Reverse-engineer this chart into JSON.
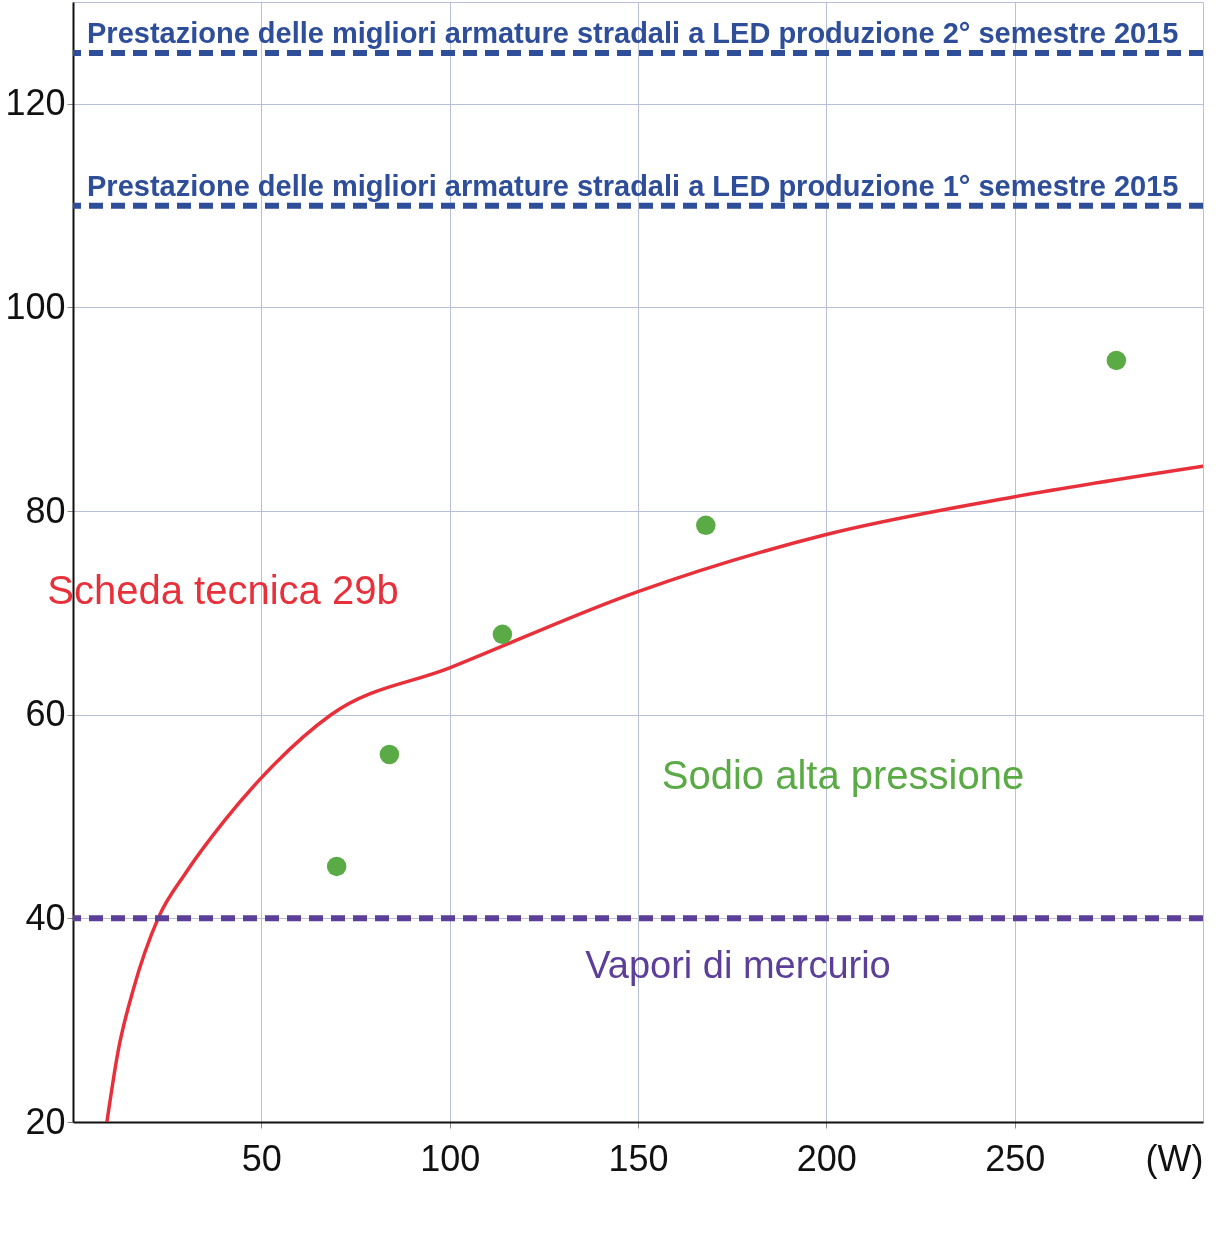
{
  "chart_data": {
    "type": "line",
    "xlabel": "(W)",
    "xlim": [
      0,
      300
    ],
    "ylim": [
      20,
      130
    ],
    "xticks": [
      50,
      100,
      150,
      200,
      250
    ],
    "yticks": [
      20,
      40,
      60,
      80,
      100,
      120
    ],
    "grid": true,
    "legend": false,
    "series": [
      {
        "name": "Scheda tecnica 29b",
        "color": "#e8303a",
        "x": [
          9,
          12,
          16,
          22.6,
          30,
          40,
          50,
          68.5,
          100,
          150,
          200,
          250,
          300
        ],
        "values": [
          20,
          27,
          33,
          40,
          44.5,
          49.5,
          53.8,
          60,
          64.6,
          72.1,
          77.7,
          81.4,
          84.4
        ]
      },
      {
        "name": "Sodio alta pressione",
        "type": "scatter",
        "color": "#5aaa46",
        "marker": "circle",
        "x": [
          70,
          84,
          114,
          168,
          277
        ],
        "values": [
          45.1,
          56.1,
          67.9,
          78.6,
          94.8
        ]
      }
    ],
    "ref_lines": [
      {
        "axis": "y",
        "value": 125,
        "label": "Prestazione delle migliori armature stradali a LED produzione 2° semestre 2015",
        "color": "#2e4e9a",
        "line_style": "dashed"
      },
      {
        "axis": "y",
        "value": 110,
        "label": "Prestazione delle migliori armature stradali a LED produzione 1° semestre 2015",
        "color": "#2e4e9a",
        "line_style": "dashed"
      },
      {
        "axis": "y",
        "value": 40,
        "label": "Vapori di mercurio",
        "color": "#5b3f99",
        "line_style": "dashed"
      }
    ]
  }
}
